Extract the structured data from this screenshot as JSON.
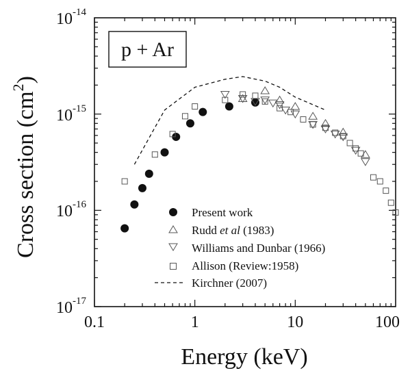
{
  "chart_data": {
    "type": "scatter",
    "xscale": "log",
    "yscale": "log",
    "xlim": [
      0.1,
      100
    ],
    "ylim": [
      1e-17,
      1e-14
    ],
    "xlabel": "Energy  (keV)",
    "ylabel_main": "Cross section  (cm",
    "ylabel_sup": "2",
    "ylabel_close": ")",
    "x_tick_labels": [
      "0.1",
      "1",
      "10",
      "100"
    ],
    "x_tick_values": [
      0.1,
      1,
      10,
      100
    ],
    "y_tick_labels": [
      {
        "value": 1e-17,
        "base": "10",
        "exp": "-17"
      },
      {
        "value": 1e-16,
        "base": "10",
        "exp": "-16"
      },
      {
        "value": 1e-15,
        "base": "10",
        "exp": "-15"
      },
      {
        "value": 1e-14,
        "base": "10",
        "exp": "-14"
      }
    ],
    "annotation": "p + Ar",
    "legend_position": "bottom-center",
    "series": [
      {
        "name": "Present work",
        "marker": "filled-circle",
        "points": [
          [
            0.2,
            6.5e-17
          ],
          [
            0.25,
            1.15e-16
          ],
          [
            0.3,
            1.7e-16
          ],
          [
            0.35,
            2.4e-16
          ],
          [
            0.5,
            4e-16
          ],
          [
            0.65,
            5.8e-16
          ],
          [
            0.9,
            8e-16
          ],
          [
            1.2,
            1.05e-15
          ],
          [
            2.2,
            1.2e-15
          ],
          [
            4.0,
            1.32e-15
          ]
        ]
      },
      {
        "name_prefix": "Rudd ",
        "name_italic": "et al",
        "name_suffix": " (1983)",
        "marker": "triangle-up",
        "points": [
          [
            3.0,
            1.45e-15
          ],
          [
            5.0,
            1.75e-15
          ],
          [
            7.0,
            1.4e-15
          ],
          [
            10.0,
            1.2e-15
          ],
          [
            15.0,
            9.5e-16
          ],
          [
            20.0,
            8e-16
          ],
          [
            30.0,
            6.5e-16
          ],
          [
            50.0,
            3.8e-16
          ]
        ]
      },
      {
        "name": "Williams and Dunbar (1966)",
        "marker": "triangle-down",
        "points": [
          [
            2.0,
            1.6e-15
          ],
          [
            3.0,
            1.45e-15
          ],
          [
            4.0,
            1.35e-15
          ],
          [
            5.0,
            1.4e-15
          ],
          [
            6.0,
            1.3e-15
          ],
          [
            7.0,
            1.25e-15
          ],
          [
            8.0,
            1.1e-15
          ],
          [
            10.0,
            1e-15
          ],
          [
            15.0,
            7.8e-16
          ],
          [
            20.0,
            7e-16
          ],
          [
            25.0,
            6.2e-16
          ],
          [
            30.0,
            5.8e-16
          ],
          [
            40.0,
            4.2e-16
          ],
          [
            50.0,
            3.2e-16
          ]
        ]
      },
      {
        "name": "Allison (Review:1958)",
        "marker": "open-square",
        "points": [
          [
            0.2,
            2e-16
          ],
          [
            0.4,
            3.8e-16
          ],
          [
            0.6,
            6.2e-16
          ],
          [
            0.8,
            9.5e-16
          ],
          [
            1.0,
            1.2e-15
          ],
          [
            2.0,
            1.4e-15
          ],
          [
            3.0,
            1.6e-15
          ],
          [
            4.0,
            1.55e-15
          ],
          [
            5.0,
            1.35e-15
          ],
          [
            7.0,
            1.15e-15
          ],
          [
            9.0,
            1.05e-15
          ],
          [
            12.0,
            8.8e-16
          ],
          [
            15.0,
            7.8e-16
          ],
          [
            20.0,
            7.2e-16
          ],
          [
            25.0,
            6.4e-16
          ],
          [
            30.0,
            5.9e-16
          ],
          [
            35.0,
            5e-16
          ],
          [
            40.0,
            4.4e-16
          ],
          [
            45.0,
            3.9e-16
          ],
          [
            60.0,
            2.2e-16
          ],
          [
            70.0,
            2e-16
          ],
          [
            80.0,
            1.6e-16
          ],
          [
            90.0,
            1.2e-16
          ],
          [
            100.0,
            9.5e-17
          ]
        ]
      },
      {
        "name": "Kirchner (2007)",
        "marker": "dashed-line",
        "points": [
          [
            0.25,
            3e-16
          ],
          [
            0.5,
            1.1e-15
          ],
          [
            1.0,
            1.9e-15
          ],
          [
            2.0,
            2.3e-15
          ],
          [
            3.0,
            2.45e-15
          ],
          [
            5.0,
            2.2e-15
          ],
          [
            7.0,
            1.9e-15
          ],
          [
            10.0,
            1.5e-15
          ],
          [
            20.0,
            1.1e-15
          ]
        ]
      }
    ]
  }
}
